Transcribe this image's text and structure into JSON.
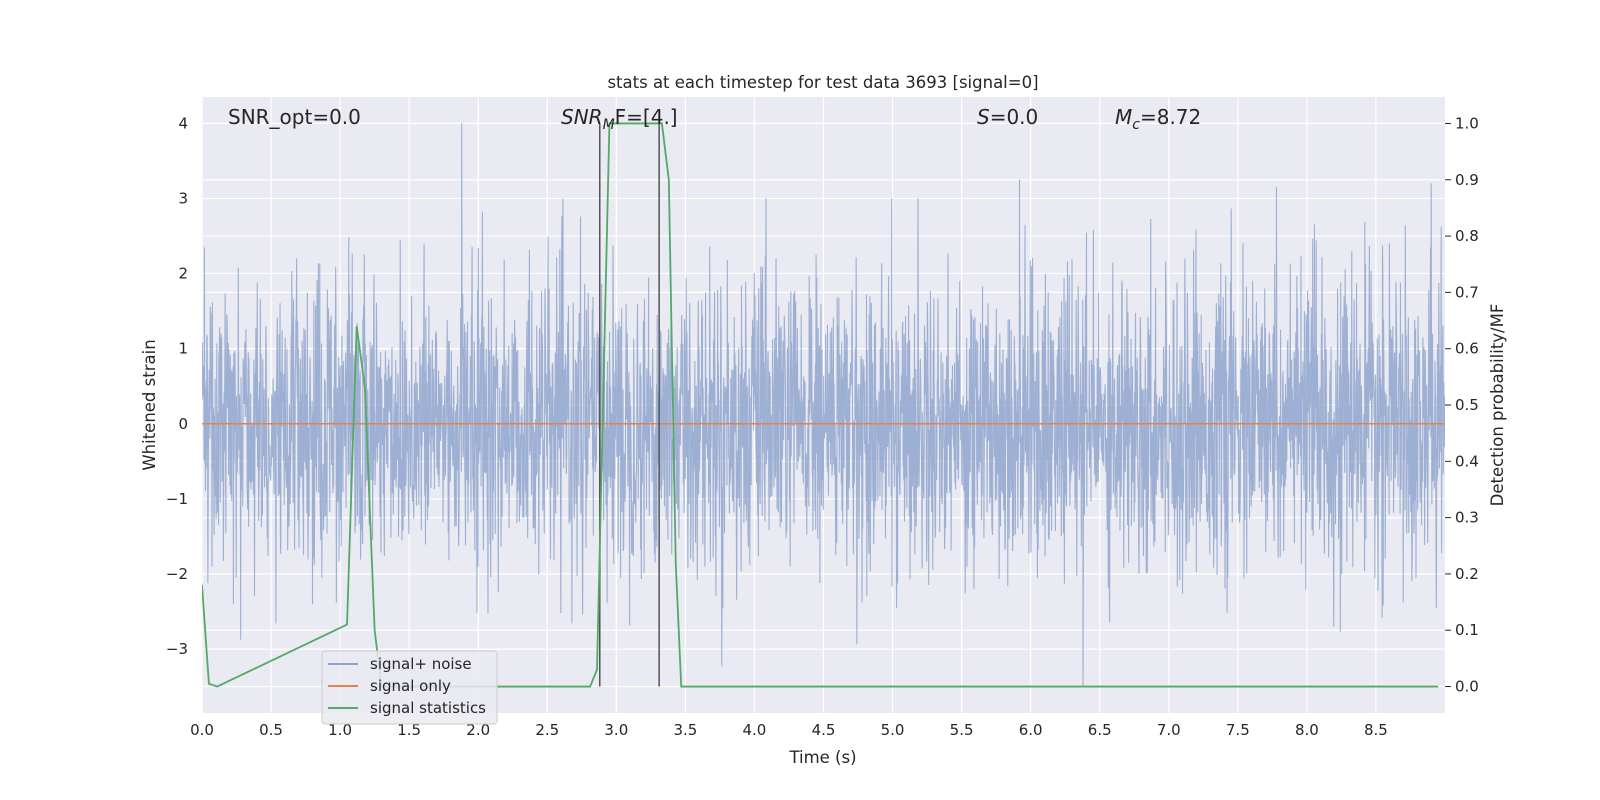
{
  "chart_data": {
    "type": "line",
    "title": "stats at each timestep for test data 3693 [signal=0]",
    "xlabel": "Time (s)",
    "ylabel": "Whitened strain",
    "y2label": "Detection probability/MF",
    "xlim": [
      0.0,
      9.0
    ],
    "ylim": [
      -3.85,
      4.35
    ],
    "y2lim": [
      -0.047,
      1.047
    ],
    "x_ticks": [
      "0.0",
      "0.5",
      "1.0",
      "1.5",
      "2.0",
      "2.5",
      "3.0",
      "3.5",
      "4.0",
      "4.5",
      "5.0",
      "5.5",
      "6.0",
      "6.5",
      "7.0",
      "7.5",
      "8.0",
      "8.5"
    ],
    "y_ticks": [
      "−3",
      "−2",
      "−1",
      "0",
      "1",
      "2",
      "3",
      "4"
    ],
    "y2_ticks": [
      "0.0",
      "0.1",
      "0.2",
      "0.3",
      "0.4",
      "0.5",
      "0.6",
      "0.7",
      "0.8",
      "0.9",
      "1.0"
    ],
    "grid": true,
    "legend_position": "lower-left",
    "series": [
      {
        "name": "signal+ noise",
        "color": "#8fa4cc",
        "axis": "left",
        "description_values": "whitened noise, roughly Gaussian; envelope about -2.5 to 2.5 with spikes to 4.0 near t=1.88 and 3.25 near t=5.92",
        "peaks": [
          {
            "x": 1.88,
            "y": 4.0
          },
          {
            "x": 5.92,
            "y": 3.25
          },
          {
            "x": 7.78,
            "y": 3.15
          },
          {
            "x": 8.9,
            "y": 3.2
          },
          {
            "x": 6.38,
            "y": -3.5
          }
        ]
      },
      {
        "name": "signal only",
        "color": "#dd8452",
        "axis": "left",
        "x": [
          0.0,
          9.0
        ],
        "values": [
          0.0,
          0.0
        ]
      },
      {
        "name": "signal statistics",
        "color": "#55a868",
        "axis": "right",
        "x": [
          0.0,
          0.05,
          0.11,
          1.05,
          1.12,
          1.18,
          1.25,
          1.3,
          2.81,
          2.86,
          2.95,
          3.33,
          3.38,
          3.43,
          3.47,
          8.95
        ],
        "values": [
          0.18,
          0.005,
          0.0,
          0.11,
          0.64,
          0.53,
          0.1,
          0.0,
          0.0,
          0.03,
          1.0,
          1.0,
          0.9,
          0.22,
          0.0,
          0.0
        ]
      }
    ],
    "vertical_lines": [
      {
        "x": 2.88,
        "color": "#555555"
      },
      {
        "x": 3.31,
        "color": "#555555"
      }
    ],
    "annotations": {
      "snr_opt": "SNR_opt=0.0",
      "snr_mf_main": "SNR",
      "snr_mf_sub": "M",
      "snr_mf_rest": "F=[4.]",
      "s_italic": "S",
      "s_rest": "=0.0",
      "mc_main": "M",
      "mc_sub": "c",
      "mc_rest": "=8.72"
    }
  }
}
